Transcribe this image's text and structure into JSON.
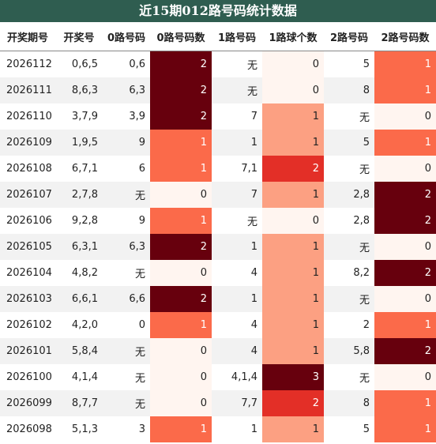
{
  "title": "近15期012路号码统计数据",
  "table": {
    "columns": [
      "开奖期号",
      "开奖号",
      "0路号码",
      "0路号码数",
      "1路号码",
      "1路球个数",
      "2路号码",
      "2路号码数"
    ],
    "rows": [
      [
        "2026112",
        "0,6,5",
        "0,6",
        2,
        "无",
        0,
        "5",
        1
      ],
      [
        "2026111",
        "8,6,3",
        "6,3",
        2,
        "无",
        0,
        "8",
        1
      ],
      [
        "2026110",
        "3,7,9",
        "3,9",
        2,
        "7",
        1,
        "无",
        0
      ],
      [
        "2026109",
        "1,9,5",
        "9",
        1,
        "1",
        1,
        "5",
        1
      ],
      [
        "2026108",
        "6,7,1",
        "6",
        1,
        "7,1",
        2,
        "无",
        0
      ],
      [
        "2026107",
        "2,7,8",
        "无",
        0,
        "7",
        1,
        "2,8",
        2
      ],
      [
        "2026106",
        "9,2,8",
        "9",
        1,
        "无",
        0,
        "2,8",
        2
      ],
      [
        "2026105",
        "6,3,1",
        "6,3",
        2,
        "1",
        1,
        "无",
        0
      ],
      [
        "2026104",
        "4,8,2",
        "无",
        0,
        "4",
        1,
        "8,2",
        2
      ],
      [
        "2026103",
        "6,6,1",
        "6,6",
        2,
        "1",
        1,
        "无",
        0
      ],
      [
        "2026102",
        "4,2,0",
        "0",
        1,
        "4",
        1,
        "2",
        1
      ],
      [
        "2026101",
        "5,8,4",
        "无",
        0,
        "4",
        1,
        "5,8",
        2
      ],
      [
        "2026100",
        "4,1,4",
        "无",
        0,
        "4,1,4",
        3,
        "无",
        0
      ],
      [
        "2026099",
        "8,7,7",
        "无",
        0,
        "7,7",
        2,
        "8",
        1
      ],
      [
        "2026098",
        "5,1,3",
        "3",
        1,
        "1",
        1,
        "5",
        1
      ]
    ]
  }
}
